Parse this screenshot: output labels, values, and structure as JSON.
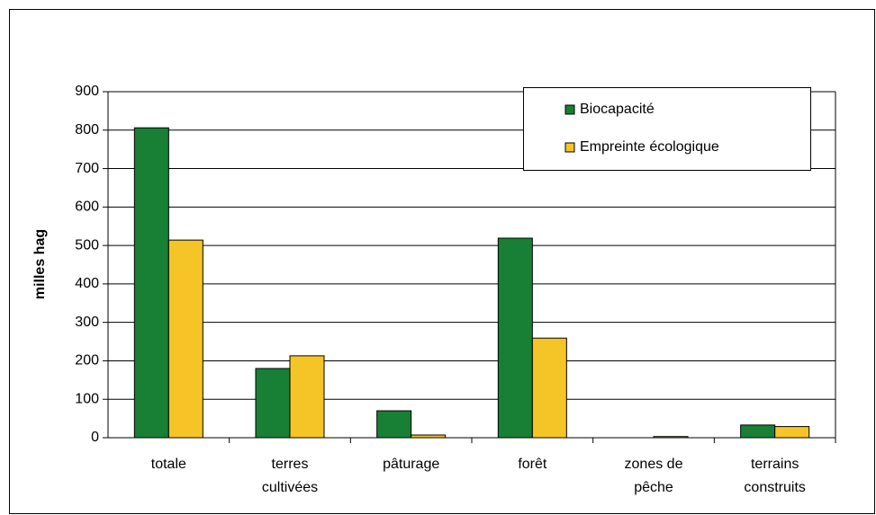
{
  "chart_data": {
    "type": "bar",
    "y_label": "milles hag",
    "categories": [
      "totale",
      "terres cultivées",
      "pâturage",
      "forêt",
      "zones de pêche",
      "terrains construits"
    ],
    "series": [
      {
        "name": "Biocapacité",
        "color": "#178035",
        "values": [
          806,
          180,
          70,
          519,
          0,
          33
        ]
      },
      {
        "name": "Empreinte écologique",
        "color": "#f5c527",
        "values": [
          514,
          213,
          7,
          259,
          3,
          29
        ]
      }
    ],
    "ylim": [
      0,
      900
    ],
    "yticks": [
      0,
      100,
      200,
      300,
      400,
      500,
      600,
      700,
      800,
      900
    ],
    "grid": true,
    "legend": "top-right"
  }
}
